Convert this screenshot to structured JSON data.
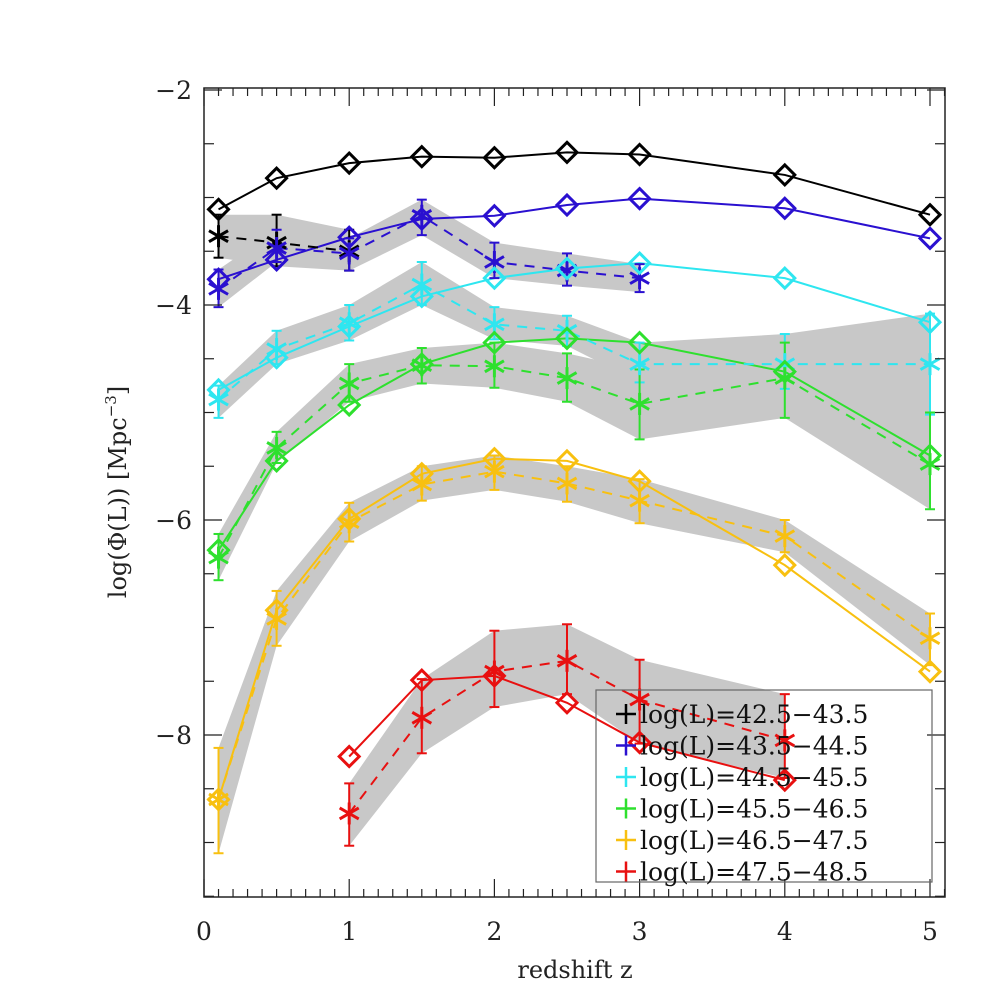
{
  "chart_data": {
    "type": "line",
    "title": "",
    "xlabel": "redshift z",
    "ylabel": "log(Φ(L)) [Mpc⁻³]",
    "ylabel_parts": {
      "main": "log(Φ(L)) [Mpc",
      "sup": "−3",
      "close": "]"
    },
    "xlim": [
      0,
      5.1
    ],
    "ylim": [
      -9.5,
      -2
    ],
    "xticks": [
      0,
      1,
      2,
      3,
      4,
      5
    ],
    "xtick_labels": [
      "0",
      "1",
      "2",
      "3",
      "4",
      "5"
    ],
    "yticks": [
      -8,
      -6,
      -4,
      -2
    ],
    "ytick_labels": [
      "−8",
      "−6",
      "−4",
      "−2"
    ],
    "x_minor_step": 0.1,
    "y_minor_step": 0.5,
    "grid": false,
    "legend_position": "bottom-right",
    "band_color": "#c8c8c8",
    "series": [
      {
        "name": "log(L)=42.5−43.5",
        "color": "#000000",
        "model": {
          "x": [
            0.1,
            0.5,
            1,
            1.5,
            2,
            2.5,
            3,
            4,
            5
          ],
          "y": [
            -3.11,
            -2.82,
            -2.68,
            -2.62,
            -2.63,
            -2.58,
            -2.6,
            -2.79,
            -3.16
          ]
        },
        "data": {
          "x": [
            0.1,
            0.5,
            1
          ],
          "y": [
            -3.36,
            -3.42,
            -3.5
          ],
          "err": [
            [
              -3.56,
              -3.16
            ],
            [
              -3.64,
              -3.16
            ],
            [
              -3.68,
              -3.3
            ]
          ]
        }
      },
      {
        "name": "log(L)=43.5−44.5",
        "color": "#2a10d0",
        "model": {
          "x": [
            0.1,
            0.5,
            1,
            1.5,
            2,
            2.5,
            3,
            4,
            5
          ],
          "y": [
            -3.76,
            -3.58,
            -3.37,
            -3.2,
            -3.17,
            -3.07,
            -3.01,
            -3.1,
            -3.38
          ]
        },
        "data": {
          "x": [
            0.1,
            0.5,
            1,
            1.5,
            2,
            2.5,
            3
          ],
          "y": [
            -3.85,
            -3.47,
            -3.52,
            -3.17,
            -3.6,
            -3.68,
            -3.75
          ],
          "err": [
            [
              -4.02,
              -3.67
            ],
            [
              -3.6,
              -3.3
            ],
            [
              -3.68,
              -3.38
            ],
            [
              -3.35,
              -3.02
            ],
            [
              -3.75,
              -3.42
            ],
            [
              -3.82,
              -3.52
            ],
            [
              -3.88,
              -3.62
            ]
          ]
        }
      },
      {
        "name": "log(L)=44.5−45.5",
        "color": "#2ee6f0",
        "model": {
          "x": [
            0.1,
            0.5,
            1,
            1.5,
            2,
            2.5,
            3,
            4,
            5
          ],
          "y": [
            -4.79,
            -4.49,
            -4.2,
            -3.92,
            -3.75,
            -3.66,
            -3.61,
            -3.75,
            -4.16
          ]
        },
        "data": {
          "x": [
            0.1,
            0.5,
            1,
            1.5,
            2,
            2.5,
            3,
            4,
            5
          ],
          "y": [
            -4.88,
            -4.41,
            -4.17,
            -3.81,
            -4.18,
            -4.24,
            -4.55,
            -4.55,
            -4.55
          ],
          "err": [
            [
              -5.05,
              -4.75
            ],
            [
              -4.55,
              -4.24
            ],
            [
              -4.33,
              -4.0
            ],
            [
              -4.0,
              -3.6
            ],
            [
              -4.32,
              -4.02
            ],
            [
              -4.38,
              -4.1
            ],
            [
              -4.72,
              -4.35
            ],
            [
              -4.78,
              -4.27
            ],
            [
              -5.02,
              -4.08
            ]
          ]
        }
      },
      {
        "name": "log(L)=45.5−46.5",
        "color": "#2ee02e",
        "model": {
          "x": [
            0.1,
            0.5,
            1,
            1.5,
            2,
            2.5,
            3,
            4,
            5
          ],
          "y": [
            -6.28,
            -5.45,
            -4.93,
            -4.55,
            -4.35,
            -4.31,
            -4.35,
            -4.62,
            -5.4
          ]
        },
        "data": {
          "x": [
            0.1,
            0.5,
            1,
            1.5,
            2,
            2.5,
            3,
            4,
            5
          ],
          "y": [
            -6.35,
            -5.33,
            -4.73,
            -4.56,
            -4.57,
            -4.68,
            -4.92,
            -4.68,
            -5.48
          ],
          "err": [
            [
              -6.56,
              -6.13
            ],
            [
              -5.47,
              -5.18
            ],
            [
              -4.9,
              -4.55
            ],
            [
              -4.73,
              -4.4
            ],
            [
              -4.77,
              -4.35
            ],
            [
              -4.9,
              -4.45
            ],
            [
              -5.25,
              -4.6
            ],
            [
              -5.05,
              -4.35
            ],
            [
              -5.9,
              -5.0
            ]
          ]
        }
      },
      {
        "name": "log(L)=46.5−47.5",
        "color": "#f8c010",
        "model": {
          "x": [
            0.1,
            0.5,
            1,
            1.5,
            2,
            2.5,
            3,
            4,
            5
          ],
          "y": [
            -8.6,
            -6.84,
            -5.99,
            -5.57,
            -5.43,
            -5.45,
            -5.64,
            -6.42,
            -7.41
          ]
        },
        "data": {
          "x": [
            0.1,
            0.5,
            1,
            1.5,
            2,
            2.5,
            3,
            4,
            5
          ],
          "y": [
            -8.6,
            -6.92,
            -6.02,
            -5.67,
            -5.55,
            -5.66,
            -5.82,
            -6.15,
            -7.1
          ],
          "err": [
            [
              -9.1,
              -8.12
            ],
            [
              -7.17,
              -6.66
            ],
            [
              -6.2,
              -5.84
            ],
            [
              -5.82,
              -5.5
            ],
            [
              -5.72,
              -5.4
            ],
            [
              -5.83,
              -5.5
            ],
            [
              -6.03,
              -5.62
            ],
            [
              -6.3,
              -6.0
            ],
            [
              -7.35,
              -6.87
            ]
          ]
        }
      },
      {
        "name": "log(L)=47.5−48.5",
        "color": "#e81010",
        "model": {
          "x": [
            1,
            1.5,
            2,
            2.5,
            3,
            4
          ],
          "y": [
            -8.2,
            -7.49,
            -7.45,
            -7.7,
            -8.07,
            -8.42
          ]
        },
        "data": {
          "x": [
            1,
            1.5,
            2,
            2.5,
            3,
            4
          ],
          "y": [
            -8.73,
            -7.84,
            -7.41,
            -7.31,
            -7.67,
            -8.05
          ],
          "err": [
            [
              -9.03,
              -8.45
            ],
            [
              -8.17,
              -7.48
            ],
            [
              -7.74,
              -7.03
            ],
            [
              -7.62,
              -6.97
            ],
            [
              -8.08,
              -7.3
            ],
            [
              -8.4,
              -7.62
            ]
          ]
        }
      }
    ]
  }
}
